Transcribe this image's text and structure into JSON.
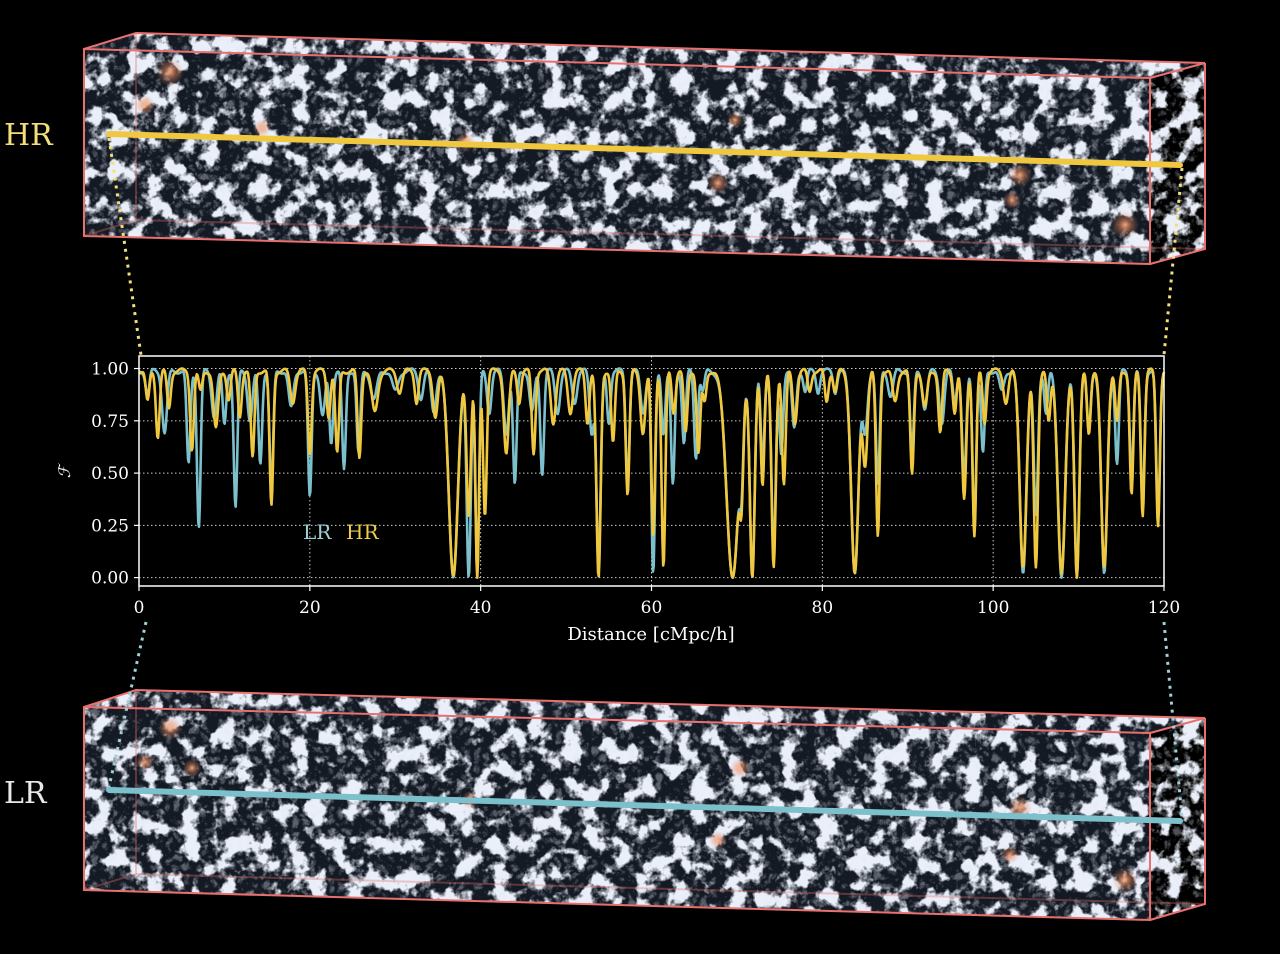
{
  "labels": {
    "hr_box": "HR",
    "lr_box": "LR"
  },
  "colors": {
    "hr": "#f0c840",
    "lr": "#7cc0cc",
    "box": "#e8706e"
  },
  "chart_data": {
    "type": "line",
    "title": "",
    "xlabel": "Distance [cMpc/h]",
    "ylabel": "ℱ",
    "xlim": [
      0,
      120
    ],
    "ylim": [
      -0.04,
      1.06
    ],
    "xticks": [
      0,
      20,
      40,
      60,
      80,
      100,
      120
    ],
    "xtick_labels": [
      "0",
      "20",
      "40",
      "60",
      "80",
      "100",
      "120"
    ],
    "yticks": [
      0.0,
      0.25,
      0.5,
      0.75,
      1.0
    ],
    "ytick_labels": [
      "0.00",
      "0.25",
      "0.50",
      "0.75",
      "1.00"
    ],
    "grid": true,
    "legend": {
      "position": "lower-left",
      "entries": [
        "LR",
        "HR"
      ]
    },
    "series": [
      {
        "name": "LR",
        "color": "#7cc0cc",
        "absorbers": [
          [
            1,
            0.88,
            0.3
          ],
          [
            3,
            0.7,
            0.4
          ],
          [
            5.8,
            0.55,
            0.3
          ],
          [
            7,
            0.24,
            0.3
          ],
          [
            8.8,
            0.78,
            0.4
          ],
          [
            10,
            0.74,
            0.3
          ],
          [
            11.3,
            0.34,
            0.3
          ],
          [
            13,
            0.76,
            0.4
          ],
          [
            14.2,
            0.55,
            0.3
          ],
          [
            15.5,
            0.42,
            0.3
          ],
          [
            17.8,
            0.82,
            0.4
          ],
          [
            20,
            0.39,
            0.3
          ],
          [
            21.5,
            0.78,
            0.4
          ],
          [
            22.5,
            0.65,
            0.3
          ],
          [
            24,
            0.52,
            0.3
          ],
          [
            25.7,
            0.6,
            0.3
          ],
          [
            27.5,
            0.86,
            0.5
          ],
          [
            30,
            0.9,
            0.5
          ],
          [
            33,
            0.87,
            0.4
          ],
          [
            34.5,
            0.8,
            0.4
          ],
          [
            36.8,
            0.0,
            0.75
          ],
          [
            38.6,
            0.0,
            0.35
          ],
          [
            39.6,
            0.02,
            0.3
          ],
          [
            41,
            0.8,
            0.35
          ],
          [
            43,
            0.7,
            0.4
          ],
          [
            44,
            0.45,
            0.3
          ],
          [
            46,
            0.8,
            0.4
          ],
          [
            47.2,
            0.5,
            0.3
          ],
          [
            49,
            0.8,
            0.4
          ],
          [
            51,
            0.85,
            0.4
          ],
          [
            53,
            0.7,
            0.35
          ],
          [
            53.8,
            0.05,
            0.35
          ],
          [
            55,
            0.75,
            0.3
          ],
          [
            57.2,
            0.45,
            0.3
          ],
          [
            59,
            0.8,
            0.4
          ],
          [
            60.2,
            0.02,
            0.3
          ],
          [
            61.4,
            0.7,
            0.3
          ],
          [
            62.5,
            0.45,
            0.3
          ],
          [
            63.8,
            0.65,
            0.3
          ],
          [
            65.2,
            0.58,
            0.3
          ],
          [
            66,
            0.9,
            0.3
          ],
          [
            69.5,
            0.0,
            1.0
          ],
          [
            70.5,
            0.52,
            0.3
          ],
          [
            71.8,
            0.0,
            0.4
          ],
          [
            73,
            0.55,
            0.3
          ],
          [
            74.3,
            0.12,
            0.35
          ],
          [
            75.2,
            0.6,
            0.3
          ],
          [
            76.7,
            0.72,
            0.35
          ],
          [
            78,
            0.9,
            0.3
          ],
          [
            79.5,
            0.9,
            0.3
          ],
          [
            81.5,
            0.9,
            0.3
          ],
          [
            83.8,
            0.02,
            0.6
          ],
          [
            85,
            0.7,
            0.4
          ],
          [
            86.5,
            0.45,
            0.3
          ],
          [
            88,
            0.88,
            0.4
          ],
          [
            90.5,
            0.6,
            0.3
          ],
          [
            92,
            0.82,
            0.4
          ],
          [
            94,
            0.75,
            0.4
          ],
          [
            95.5,
            0.85,
            0.3
          ],
          [
            96.6,
            0.48,
            0.35
          ],
          [
            97.8,
            0.25,
            0.3
          ],
          [
            98.8,
            0.6,
            0.3
          ],
          [
            101,
            0.9,
            0.4
          ],
          [
            103.5,
            0.02,
            0.55
          ],
          [
            105,
            0.3,
            0.35
          ],
          [
            106.2,
            0.8,
            0.3
          ],
          [
            108,
            0.0,
            0.6
          ],
          [
            109.8,
            0.02,
            0.4
          ],
          [
            111.2,
            0.7,
            0.3
          ],
          [
            113,
            0.02,
            0.5
          ],
          [
            114.5,
            0.55,
            0.3
          ],
          [
            116.2,
            0.5,
            0.3
          ],
          [
            117.5,
            0.35,
            0.3
          ],
          [
            119.3,
            0.3,
            0.3
          ]
        ]
      },
      {
        "name": "HR",
        "color": "#f0c840",
        "absorbers": [
          [
            1,
            0.85,
            0.3
          ],
          [
            2.2,
            0.68,
            0.3
          ],
          [
            3.5,
            0.82,
            0.3
          ],
          [
            6.2,
            0.62,
            0.3
          ],
          [
            7.2,
            0.9,
            0.3
          ],
          [
            9,
            0.72,
            0.4
          ],
          [
            10.5,
            0.86,
            0.3
          ],
          [
            11.8,
            0.78,
            0.3
          ],
          [
            13.3,
            0.58,
            0.3
          ],
          [
            15.5,
            0.35,
            0.3
          ],
          [
            18,
            0.85,
            0.4
          ],
          [
            20,
            0.6,
            0.3
          ],
          [
            22.2,
            0.78,
            0.3
          ],
          [
            23.2,
            0.6,
            0.3
          ],
          [
            25.8,
            0.58,
            0.3
          ],
          [
            27.6,
            0.8,
            0.5
          ],
          [
            30.5,
            0.9,
            0.4
          ],
          [
            32.5,
            0.85,
            0.3
          ],
          [
            34.7,
            0.78,
            0.4
          ],
          [
            36.8,
            0.01,
            0.75
          ],
          [
            38.6,
            0.3,
            0.35
          ],
          [
            39.6,
            0.0,
            0.3
          ],
          [
            40.5,
            0.3,
            0.3
          ],
          [
            43,
            0.6,
            0.4
          ],
          [
            44.5,
            0.85,
            0.3
          ],
          [
            46.2,
            0.6,
            0.3
          ],
          [
            48.5,
            0.75,
            0.4
          ],
          [
            50.5,
            0.8,
            0.4
          ],
          [
            52.5,
            0.75,
            0.3
          ],
          [
            53.8,
            0.0,
            0.35
          ],
          [
            55.5,
            0.65,
            0.3
          ],
          [
            57.2,
            0.4,
            0.3
          ],
          [
            59,
            0.7,
            0.4
          ],
          [
            60.2,
            0.2,
            0.3
          ],
          [
            61.4,
            0.05,
            0.3
          ],
          [
            62.6,
            0.8,
            0.3
          ],
          [
            64,
            0.7,
            0.3
          ],
          [
            65.5,
            0.6,
            0.3
          ],
          [
            66.2,
            0.85,
            0.3
          ],
          [
            69.5,
            0.0,
            1.0
          ],
          [
            70.5,
            0.45,
            0.3
          ],
          [
            71.8,
            0.0,
            0.4
          ],
          [
            73,
            0.45,
            0.3
          ],
          [
            74.3,
            0.05,
            0.35
          ],
          [
            75.5,
            0.45,
            0.3
          ],
          [
            76.8,
            0.75,
            0.35
          ],
          [
            78.5,
            0.9,
            0.3
          ],
          [
            80.5,
            0.85,
            0.3
          ],
          [
            81.5,
            0.9,
            0.3
          ],
          [
            83.8,
            0.02,
            0.6
          ],
          [
            85,
            0.55,
            0.4
          ],
          [
            86.5,
            0.2,
            0.3
          ],
          [
            88.5,
            0.85,
            0.4
          ],
          [
            90.5,
            0.5,
            0.3
          ],
          [
            92,
            0.82,
            0.4
          ],
          [
            93.8,
            0.7,
            0.3
          ],
          [
            95.5,
            0.8,
            0.3
          ],
          [
            96.6,
            0.38,
            0.35
          ],
          [
            97.8,
            0.2,
            0.3
          ],
          [
            99,
            0.75,
            0.3
          ],
          [
            101.5,
            0.85,
            0.4
          ],
          [
            103.5,
            0.05,
            0.55
          ],
          [
            105,
            0.05,
            0.35
          ],
          [
            106.5,
            0.75,
            0.3
          ],
          [
            108,
            0.02,
            0.6
          ],
          [
            109.8,
            0.0,
            0.4
          ],
          [
            111.2,
            0.7,
            0.3
          ],
          [
            113,
            0.05,
            0.5
          ],
          [
            114.5,
            0.75,
            0.3
          ],
          [
            116.2,
            0.4,
            0.3
          ],
          [
            117.5,
            0.3,
            0.3
          ],
          [
            119.3,
            0.25,
            0.3
          ]
        ]
      }
    ]
  }
}
